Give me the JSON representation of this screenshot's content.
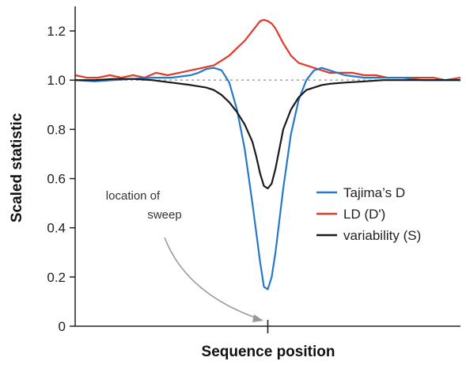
{
  "chart_data": {
    "type": "line",
    "xlabel": "Sequence position",
    "ylabel": "Scaled statistic",
    "ylim": [
      0,
      1.3
    ],
    "xlim": [
      0,
      100
    ],
    "y_ticks": [
      0,
      0.2,
      0.4,
      0.6,
      0.8,
      1.0,
      1.2
    ],
    "y_tick_labels": [
      "0",
      "0.2",
      "0.4",
      "0.6",
      "0.8",
      "1.0",
      "1.2"
    ],
    "x_ticks": [
      50
    ],
    "reference_line": {
      "y": 1.0,
      "style": "dotted",
      "color": "#aaaaaa"
    },
    "grid": false,
    "legend_position": "right",
    "annotation": {
      "lines": [
        "location of",
        "sweep"
      ],
      "points_to_x": 50
    },
    "series": [
      {
        "name": "Tajima’s D",
        "color": "#2878c8",
        "x": [
          0,
          5,
          10,
          15,
          20,
          25,
          30,
          32,
          34,
          36,
          38,
          40,
          42,
          44,
          46,
          47,
          48,
          49,
          50,
          51,
          52,
          53,
          54,
          56,
          58,
          60,
          62,
          64,
          66,
          68,
          70,
          75,
          80,
          85,
          90,
          95,
          100
        ],
        "y": [
          1.0,
          0.995,
          1.0,
          1.005,
          1.01,
          1.01,
          1.02,
          1.03,
          1.045,
          1.05,
          1.04,
          0.99,
          0.88,
          0.72,
          0.5,
          0.38,
          0.26,
          0.16,
          0.15,
          0.2,
          0.3,
          0.43,
          0.56,
          0.78,
          0.92,
          1.0,
          1.04,
          1.05,
          1.04,
          1.03,
          1.02,
          1.01,
          1.01,
          1.01,
          1.0,
          1.0,
          1.0
        ]
      },
      {
        "name": "LD (D')",
        "color": "#e03a2a",
        "x": [
          0,
          3,
          6,
          9,
          12,
          15,
          18,
          21,
          24,
          27,
          30,
          33,
          36,
          38,
          40,
          42,
          44,
          46,
          47,
          48,
          49,
          50,
          51,
          52,
          53,
          54,
          56,
          58,
          60,
          62,
          64,
          66,
          69,
          72,
          75,
          78,
          81,
          84,
          87,
          90,
          93,
          96,
          100
        ],
        "y": [
          1.02,
          1.01,
          1.01,
          1.02,
          1.01,
          1.02,
          1.01,
          1.03,
          1.02,
          1.03,
          1.04,
          1.05,
          1.06,
          1.08,
          1.1,
          1.13,
          1.16,
          1.2,
          1.22,
          1.24,
          1.245,
          1.24,
          1.23,
          1.21,
          1.18,
          1.15,
          1.1,
          1.07,
          1.06,
          1.05,
          1.04,
          1.03,
          1.03,
          1.03,
          1.02,
          1.02,
          1.01,
          1.01,
          1.01,
          1.01,
          1.01,
          1.0,
          1.01
        ]
      },
      {
        "name": "variability (S)",
        "color": "#1a1a1a",
        "x": [
          0,
          5,
          10,
          15,
          20,
          25,
          30,
          34,
          36,
          38,
          40,
          42,
          44,
          46,
          47,
          48,
          49,
          50,
          51,
          52,
          53,
          54,
          56,
          58,
          60,
          62,
          64,
          66,
          70,
          75,
          80,
          85,
          90,
          95,
          100
        ],
        "y": [
          1.0,
          1.0,
          1.005,
          1.005,
          1.0,
          0.99,
          0.98,
          0.97,
          0.96,
          0.94,
          0.91,
          0.87,
          0.82,
          0.75,
          0.69,
          0.62,
          0.57,
          0.56,
          0.58,
          0.64,
          0.72,
          0.8,
          0.88,
          0.93,
          0.96,
          0.97,
          0.98,
          0.985,
          0.99,
          0.995,
          1.0,
          1.0,
          1.0,
          1.0,
          1.0
        ]
      }
    ]
  }
}
